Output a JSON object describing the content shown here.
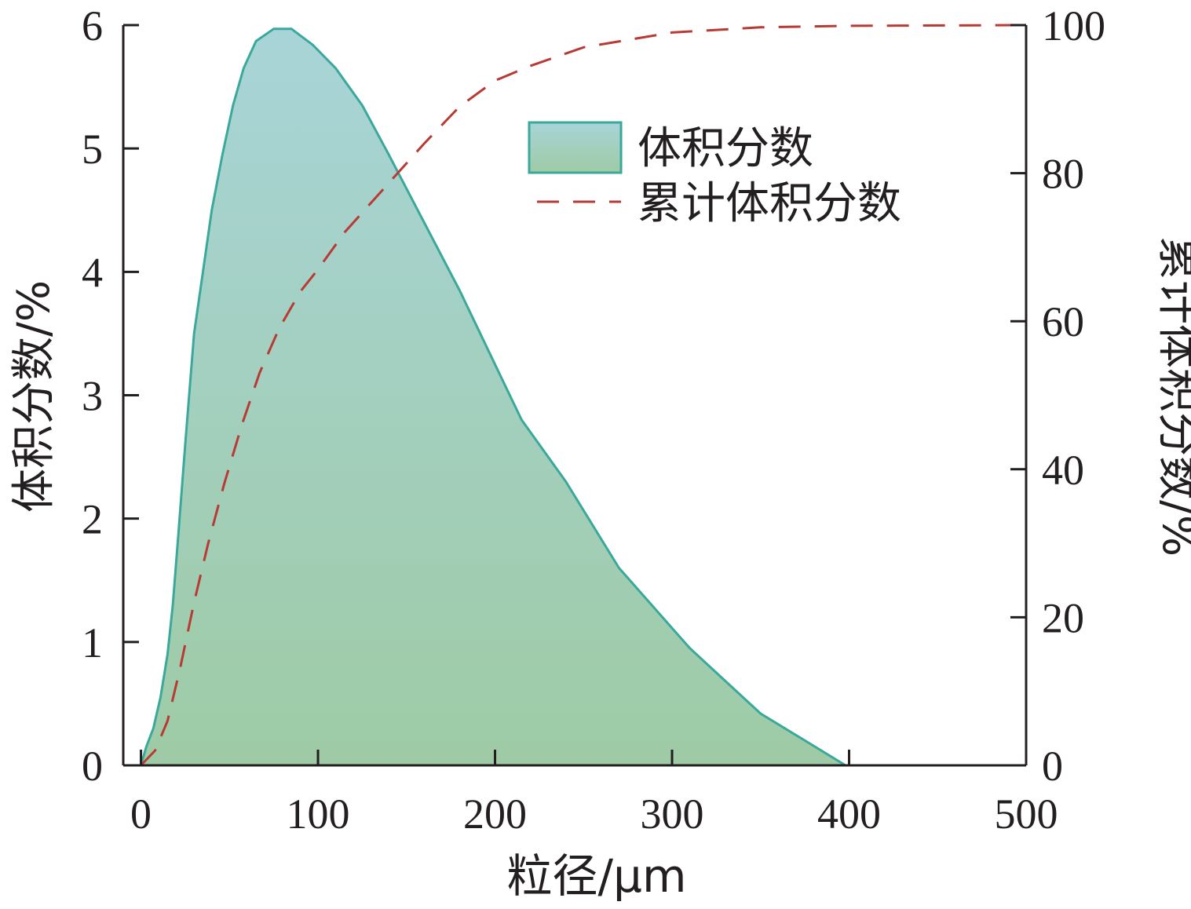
{
  "chart_data": {
    "type": "area",
    "xlabel": "粒径/μm",
    "ylabel_left": "体积分数/%",
    "ylabel_right": "累计体积分数/%",
    "xlim": [
      -10,
      500
    ],
    "ylim_left": [
      0,
      6
    ],
    "ylim_right": [
      0,
      100
    ],
    "x_ticks": [
      0,
      100,
      200,
      300,
      400,
      500
    ],
    "y_left_ticks": [
      0,
      1,
      2,
      3,
      4,
      5,
      6
    ],
    "y_right_ticks": [
      0,
      20,
      40,
      60,
      80,
      100
    ],
    "grid": false,
    "legend_position": "top-right",
    "series": [
      {
        "name": "体积分数",
        "kind": "area",
        "axis": "left",
        "line_color": "#3aa89a",
        "fill_top_color": "#a8d4d8",
        "fill_bottom_color": "#9ecba5",
        "points": [
          [
            0,
            0
          ],
          [
            3,
            0.15
          ],
          [
            7,
            0.3
          ],
          [
            11,
            0.55
          ],
          [
            15,
            0.9
          ],
          [
            18,
            1.3
          ],
          [
            21,
            1.85
          ],
          [
            25,
            2.6
          ],
          [
            30,
            3.5
          ],
          [
            35,
            4.0
          ],
          [
            40,
            4.5
          ],
          [
            46,
            4.95
          ],
          [
            52,
            5.35
          ],
          [
            58,
            5.65
          ],
          [
            65,
            5.87
          ],
          [
            75,
            5.97
          ],
          [
            85,
            5.97
          ],
          [
            97,
            5.84
          ],
          [
            110,
            5.65
          ],
          [
            125,
            5.35
          ],
          [
            140,
            4.95
          ],
          [
            160,
            4.4
          ],
          [
            180,
            3.85
          ],
          [
            200,
            3.25
          ],
          [
            215,
            2.8
          ],
          [
            240,
            2.3
          ],
          [
            270,
            1.6
          ],
          [
            310,
            0.95
          ],
          [
            350,
            0.42
          ],
          [
            398,
            0.0
          ],
          [
            500,
            0.0
          ]
        ]
      },
      {
        "name": "累计体积分数",
        "kind": "line",
        "axis": "right",
        "line_color": "#b83a34",
        "dash": "28,18",
        "points": [
          [
            0,
            0
          ],
          [
            8,
            2
          ],
          [
            15,
            6
          ],
          [
            22,
            13
          ],
          [
            30,
            22
          ],
          [
            38,
            30
          ],
          [
            47,
            38
          ],
          [
            57,
            46
          ],
          [
            67,
            53
          ],
          [
            78,
            59
          ],
          [
            90,
            64
          ],
          [
            100,
            67
          ],
          [
            115,
            72
          ],
          [
            130,
            76
          ],
          [
            145,
            80
          ],
          [
            160,
            84
          ],
          [
            180,
            89
          ],
          [
            200,
            92.5
          ],
          [
            220,
            94.5
          ],
          [
            250,
            97
          ],
          [
            300,
            99
          ],
          [
            350,
            99.7
          ],
          [
            400,
            99.9
          ],
          [
            500,
            100
          ]
        ]
      }
    ]
  }
}
